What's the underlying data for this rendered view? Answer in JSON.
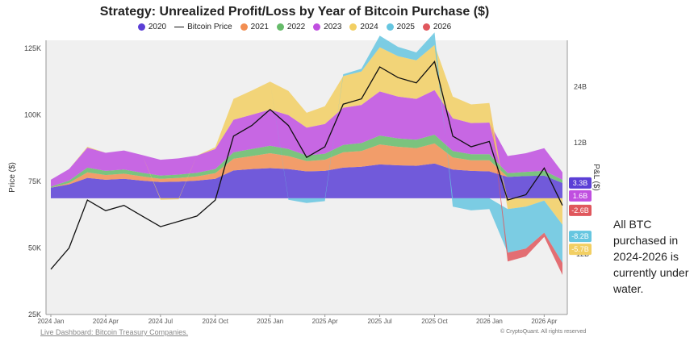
{
  "chart_data": {
    "type": "area",
    "title": "Strategy: Unrealized Profit/Loss by Year of Bitcoin Purchase ($)",
    "ylabel": "Price ($)",
    "y2label": "P&L ($)",
    "ylim": [
      25000,
      128000
    ],
    "y2lim": [
      -25000000000,
      34000000000
    ],
    "legend_position": "top-center",
    "grid": false,
    "x_ticks": [
      "2024 Jan",
      "2024 Apr",
      "2024 Jul",
      "2024 Oct",
      "2025 Jan",
      "2025 Apr",
      "2025 Jul",
      "2025 Oct",
      "2026 Jan",
      "2026 Apr"
    ],
    "y_ticks": [
      "125K",
      "100K",
      "75K",
      "50K",
      "25K"
    ],
    "y_tick_values": [
      125000,
      100000,
      75000,
      50000,
      25000
    ],
    "y2_ticks": [
      "24B",
      "12B",
      "0",
      "-12B"
    ],
    "y2_tick_values": [
      24000000000,
      12000000000,
      0,
      -12000000000
    ],
    "months": [
      "2024-01",
      "2024-02",
      "2024-03",
      "2024-04",
      "2024-05",
      "2024-06",
      "2024-07",
      "2024-08",
      "2024-09",
      "2024-10",
      "2024-11",
      "2024-12",
      "2025-01",
      "2025-02",
      "2025-03",
      "2025-04",
      "2025-05",
      "2025-06",
      "2025-07",
      "2025-08",
      "2025-09",
      "2025-10",
      "2025-11",
      "2025-12",
      "2026-01",
      "2026-02",
      "2026-03",
      "2026-04",
      "2026-05"
    ],
    "bitcoin_price": [
      42000,
      50000,
      68000,
      64000,
      66000,
      62000,
      58000,
      60000,
      62000,
      68000,
      92000,
      96000,
      102000,
      96000,
      84000,
      88000,
      104000,
      106000,
      118000,
      114000,
      112000,
      120000,
      92000,
      88000,
      90000,
      68000,
      70000,
      80000,
      66000
    ],
    "series": [
      {
        "name": "2020",
        "color": "#5b3fd6",
        "values": [
          2.3,
          3.0,
          4.4,
          4.0,
          4.2,
          3.8,
          3.5,
          3.6,
          3.8,
          4.2,
          6.0,
          6.3,
          6.5,
          6.3,
          5.8,
          5.9,
          6.6,
          6.8,
          7.3,
          7.1,
          7.0,
          7.5,
          6.2,
          5.9,
          5.8,
          4.6,
          4.8,
          4.9,
          3.3
        ]
      },
      {
        "name": "2021",
        "color": "#f28e52",
        "values": [
          0.0,
          0.3,
          1.2,
          1.0,
          1.1,
          0.9,
          0.7,
          0.8,
          0.9,
          1.2,
          2.5,
          2.8,
          3.2,
          2.8,
          2.2,
          2.4,
          3.3,
          3.4,
          4.3,
          4.0,
          3.8,
          4.3,
          2.6,
          2.3,
          2.4,
          0.0,
          0.0,
          0.0,
          0.0
        ]
      },
      {
        "name": "2022",
        "color": "#66bb6a",
        "values": [
          0.2,
          0.5,
          1.0,
          0.9,
          0.9,
          0.8,
          0.7,
          0.7,
          0.8,
          0.9,
          1.4,
          1.5,
          1.6,
          1.5,
          1.2,
          1.3,
          1.6,
          1.7,
          1.9,
          1.8,
          1.8,
          1.9,
          1.4,
          1.3,
          1.3,
          0.8,
          0.9,
          1.0,
          0.7
        ]
      },
      {
        "name": "2023",
        "color": "#c04fe0",
        "values": [
          1.5,
          2.5,
          4.3,
          3.9,
          4.1,
          3.8,
          3.4,
          3.5,
          3.7,
          4.3,
          7.0,
          7.4,
          7.8,
          7.3,
          6.0,
          6.4,
          8.0,
          8.2,
          9.5,
          9.0,
          8.8,
          9.6,
          7.0,
          6.7,
          6.8,
          3.7,
          4.0,
          4.9,
          1.6
        ]
      },
      {
        "name": "2024",
        "color": "#f2cf63",
        "values": [
          0.0,
          0.0,
          0.2,
          0.0,
          0.0,
          0.0,
          -0.3,
          -0.2,
          0.0,
          0.4,
          4.5,
          5.2,
          6.0,
          5.2,
          3.2,
          3.8,
          6.8,
          7.2,
          9.5,
          8.7,
          8.3,
          9.7,
          4.7,
          4.0,
          4.2,
          -2.3,
          -1.8,
          -0.5,
          -5.7
        ]
      },
      {
        "name": "2025",
        "color": "#66c6e0",
        "values": [
          0,
          0,
          0,
          0,
          0,
          0,
          0,
          0,
          0,
          0,
          0,
          0,
          0.0,
          -0.3,
          -1.0,
          -0.6,
          0.4,
          0.6,
          2.5,
          2.0,
          1.7,
          2.7,
          -1.8,
          -2.6,
          -2.3,
          -9.4,
          -9.0,
          -6.9,
          -8.2
        ]
      },
      {
        "name": "2026",
        "color": "#e0575d",
        "values": [
          0,
          0,
          0,
          0,
          0,
          0,
          0,
          0,
          0,
          0,
          0,
          0,
          0,
          0,
          0,
          0,
          0,
          0,
          0,
          0,
          0,
          0,
          0,
          0,
          0.0,
          -1.9,
          -1.7,
          -0.9,
          -2.6
        ]
      }
    ],
    "end_labels": [
      {
        "text": "3.3B",
        "color": "#5b3fd6",
        "value": 3.3
      },
      {
        "text": "1.6B",
        "color": "#c04fe0",
        "value": 1.6
      },
      {
        "text": "-2.6B",
        "color": "#e0575d",
        "value": -2.6
      },
      {
        "text": "-8.2B",
        "color": "#66c6e0",
        "value": -8.2
      },
      {
        "text": "-5.7B",
        "color": "#f2cf63",
        "value": -5.7
      }
    ]
  },
  "legend": [
    {
      "label": "2020",
      "color": "#5b3fd6",
      "kind": "dot"
    },
    {
      "label": "Bitcoin Price",
      "color": "#111111",
      "kind": "line"
    },
    {
      "label": "2021",
      "color": "#f28e52",
      "kind": "dot"
    },
    {
      "label": "2022",
      "color": "#66bb6a",
      "kind": "dot"
    },
    {
      "label": "2023",
      "color": "#c04fe0",
      "kind": "dot"
    },
    {
      "label": "2024",
      "color": "#f2cf63",
      "kind": "dot"
    },
    {
      "label": "2025",
      "color": "#66c6e0",
      "kind": "dot"
    },
    {
      "label": "2026",
      "color": "#e0575d",
      "kind": "dot"
    }
  ],
  "annotation": "All BTC purchased in 2024-2026 is currently under water.",
  "footer": {
    "link_text": "Live Dashboard: Bitcoin Treasury Companies.",
    "credit": "© CryptoQuant. All rights reserved"
  }
}
